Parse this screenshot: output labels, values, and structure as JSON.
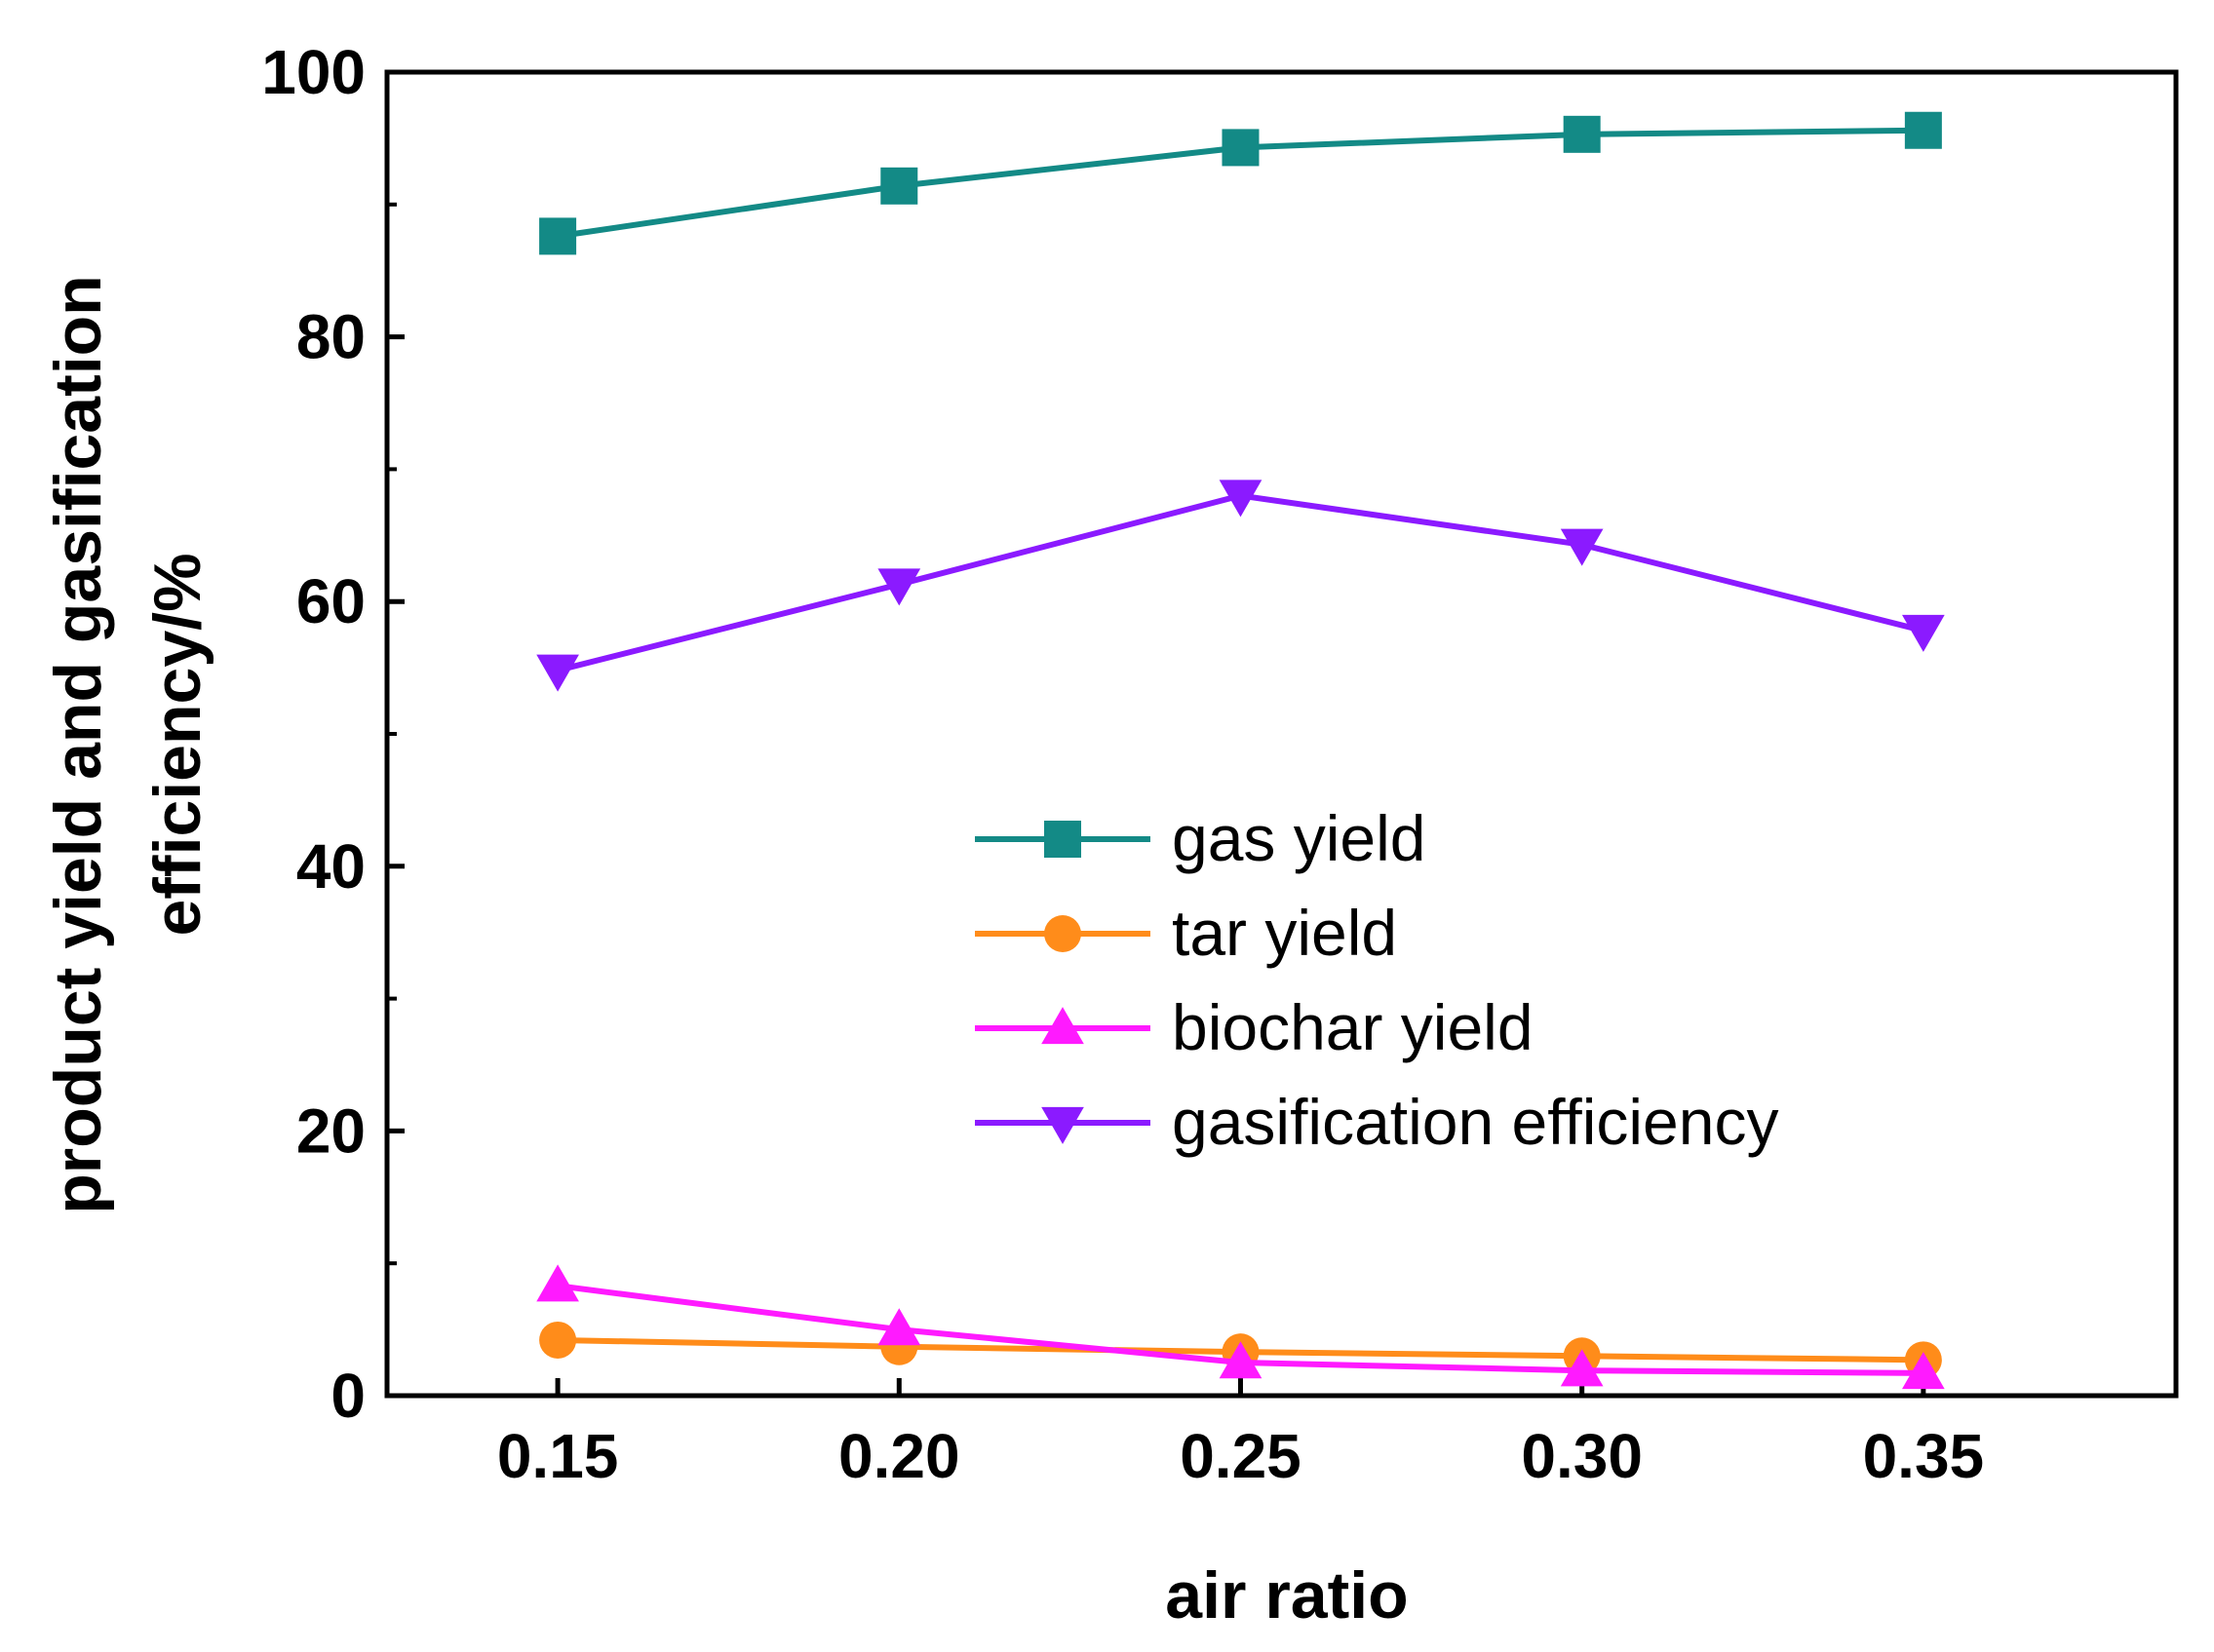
{
  "chart_data": {
    "type": "line",
    "title": "",
    "xlabel": "air ratio",
    "ylabel_line1": "product yield and gasification",
    "ylabel_line2": "efficiency/%",
    "x": [
      0.15,
      0.2,
      0.25,
      0.3,
      0.35
    ],
    "x_tick_labels": [
      "0.15",
      "0.20",
      "0.25",
      "0.30",
      "0.35"
    ],
    "xlim": [
      0.125,
      0.387
    ],
    "ylim": [
      0,
      100
    ],
    "y_ticks": [
      0,
      20,
      40,
      60,
      80,
      100
    ],
    "y_tick_labels": [
      "0",
      "20",
      "40",
      "60",
      "80",
      "100"
    ],
    "grid": false,
    "legend_position": "center-right",
    "series": [
      {
        "name": "gas yield",
        "marker": "square",
        "color": "#138A86",
        "values": [
          87.6,
          91.4,
          94.3,
          95.3,
          95.6
        ]
      },
      {
        "name": "tar yield",
        "marker": "circle",
        "color": "#FF8C1A",
        "values": [
          4.2,
          3.7,
          3.3,
          3.0,
          2.7
        ]
      },
      {
        "name": "biochar yield",
        "marker": "triangle-up",
        "color": "#FF1AFF",
        "values": [
          8.3,
          5.0,
          2.5,
          1.9,
          1.7
        ]
      },
      {
        "name": "gasification efficiency",
        "marker": "triangle-down",
        "color": "#8B1AFF",
        "values": [
          54.8,
          61.3,
          68.0,
          64.3,
          57.8
        ]
      }
    ]
  }
}
